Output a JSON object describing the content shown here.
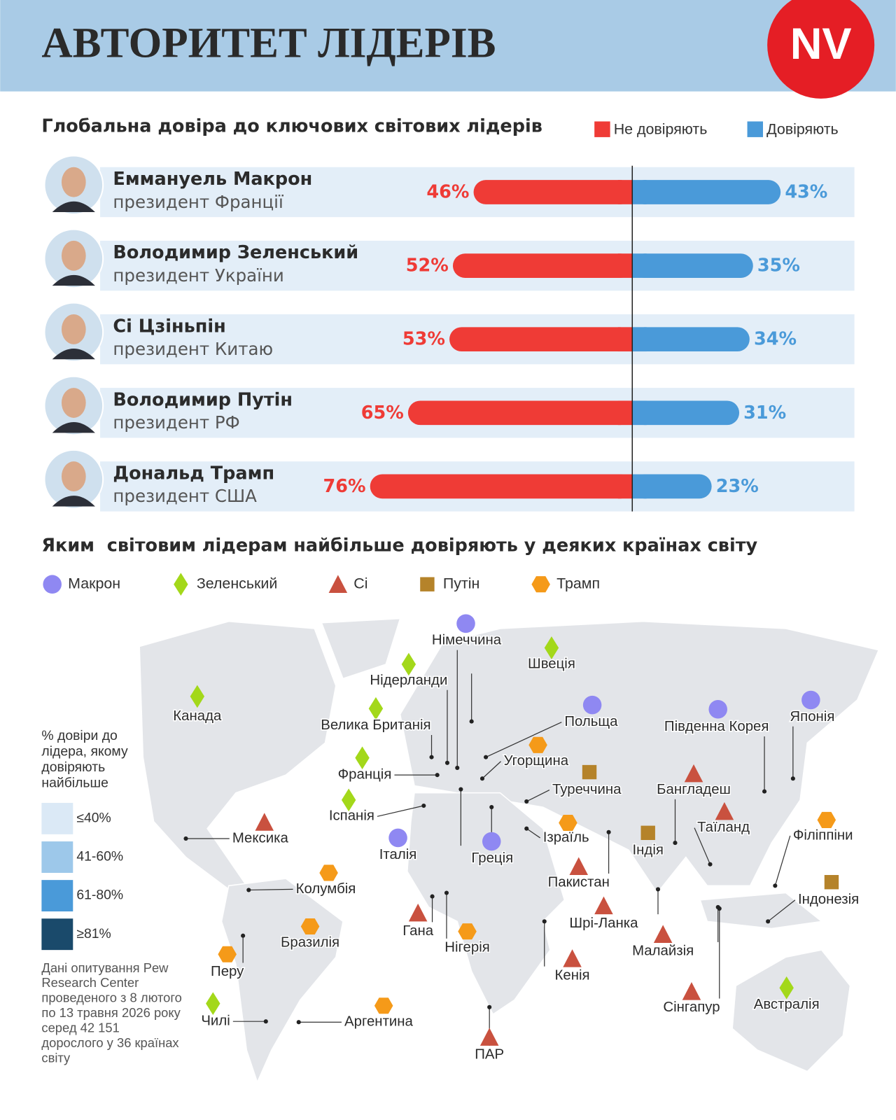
{
  "header": {
    "title": "АВТОРИТЕТ ЛІДЕРІВ",
    "logo": "NV"
  },
  "chart_data": {
    "type": "diverging-bar",
    "title": "Глобальна довіра до ключових світових лідерів",
    "categories": [
      "Еммануель Макрон",
      "Володимир Зеленський",
      "Сі Цзіньпін",
      "Володимир Путін",
      "Дональд Трамп"
    ],
    "subtitles": [
      "президент Франції",
      "президент України",
      "президент Китаю",
      "президент РФ",
      "президент США"
    ],
    "series": [
      {
        "name": "Не довіряють",
        "color": "#ef3b36",
        "values": [
          46,
          52,
          53,
          65,
          76
        ],
        "value_labels": [
          "46%",
          "52%",
          "53%",
          "65%",
          "76%"
        ]
      },
      {
        "name": "Довіряють",
        "color": "#4a9ad9",
        "values": [
          43,
          35,
          34,
          31,
          23
        ],
        "value_labels": [
          "43%",
          "35%",
          "34%",
          "31%",
          "23%"
        ]
      }
    ]
  },
  "map": {
    "title": "Яким  світовим лідерам найбільше довіряють у деяких країнах світу",
    "leaders": [
      {
        "name": "Макрон",
        "shape": "circle",
        "color": "#8f88f2"
      },
      {
        "name": "Зеленський",
        "shape": "diamond",
        "color": "#a3d81a"
      },
      {
        "name": "Сі",
        "shape": "triangle",
        "color": "#c9513f"
      },
      {
        "name": "Путін",
        "shape": "square",
        "color": "#b5832a"
      },
      {
        "name": "Трамп",
        "shape": "hexagon",
        "color": "#f59a19"
      }
    ],
    "scale_title": "% довіри до лідера, якому довіряють найбільше",
    "bins": [
      {
        "label": "≤40%",
        "color": "#dbe9f6"
      },
      {
        "label": "41-60%",
        "color": "#9dc8ea"
      },
      {
        "label": "61-80%",
        "color": "#4a9ad9"
      },
      {
        "label": "≥81%",
        "color": "#1a4a6b"
      }
    ],
    "note": "Дані опитування Pew Research Center проведеного з 8 лютого по 13 травня 2026 року серед 42 151 дорослого у 36 країнах світу",
    "countries": [
      {
        "name": "Німеччина",
        "leader": "Макрон"
      },
      {
        "name": "Швеція",
        "leader": "Зеленський"
      },
      {
        "name": "Нідерланди",
        "leader": "Зеленський"
      },
      {
        "name": "Канада",
        "leader": "Зеленський"
      },
      {
        "name": "Велика Британія",
        "leader": "Зеленський"
      },
      {
        "name": "Польща",
        "leader": "Макрон"
      },
      {
        "name": "Південна Корея",
        "leader": "Макрон"
      },
      {
        "name": "Японія",
        "leader": "Макрон"
      },
      {
        "name": "Угорщина",
        "leader": "Трамп"
      },
      {
        "name": "Франція",
        "leader": "Зеленський"
      },
      {
        "name": "Туреччина",
        "leader": "Путін"
      },
      {
        "name": "Бангладеш",
        "leader": "Сі"
      },
      {
        "name": "Іспанія",
        "leader": "Зеленський"
      },
      {
        "name": "Мексика",
        "leader": "Сі"
      },
      {
        "name": "Італія",
        "leader": "Макрон"
      },
      {
        "name": "Греція",
        "leader": "Макрон"
      },
      {
        "name": "Ізраїль",
        "leader": "Трамп"
      },
      {
        "name": "Таїланд",
        "leader": "Сі"
      },
      {
        "name": "Індія",
        "leader": "Путін"
      },
      {
        "name": "Філіппіни",
        "leader": "Трамп"
      },
      {
        "name": "Пакистан",
        "leader": "Сі"
      },
      {
        "name": "Колумбія",
        "leader": "Трамп"
      },
      {
        "name": "Індонезія",
        "leader": "Путін"
      },
      {
        "name": "Гана",
        "leader": "Сі"
      },
      {
        "name": "Бразилія",
        "leader": "Трамп"
      },
      {
        "name": "Нігерія",
        "leader": "Трамп"
      },
      {
        "name": "Шрі-Ланка",
        "leader": "Сі"
      },
      {
        "name": "Перу",
        "leader": "Трамп"
      },
      {
        "name": "Малайзія",
        "leader": "Сі"
      },
      {
        "name": "Кенія",
        "leader": "Сі"
      },
      {
        "name": "Сінгапур",
        "leader": "Сі"
      },
      {
        "name": "Австралія",
        "leader": "Зеленський"
      },
      {
        "name": "Чилі",
        "leader": "Зеленський"
      },
      {
        "name": "Аргентина",
        "leader": "Трамп"
      },
      {
        "name": "ПАР",
        "leader": "Сі"
      }
    ]
  }
}
